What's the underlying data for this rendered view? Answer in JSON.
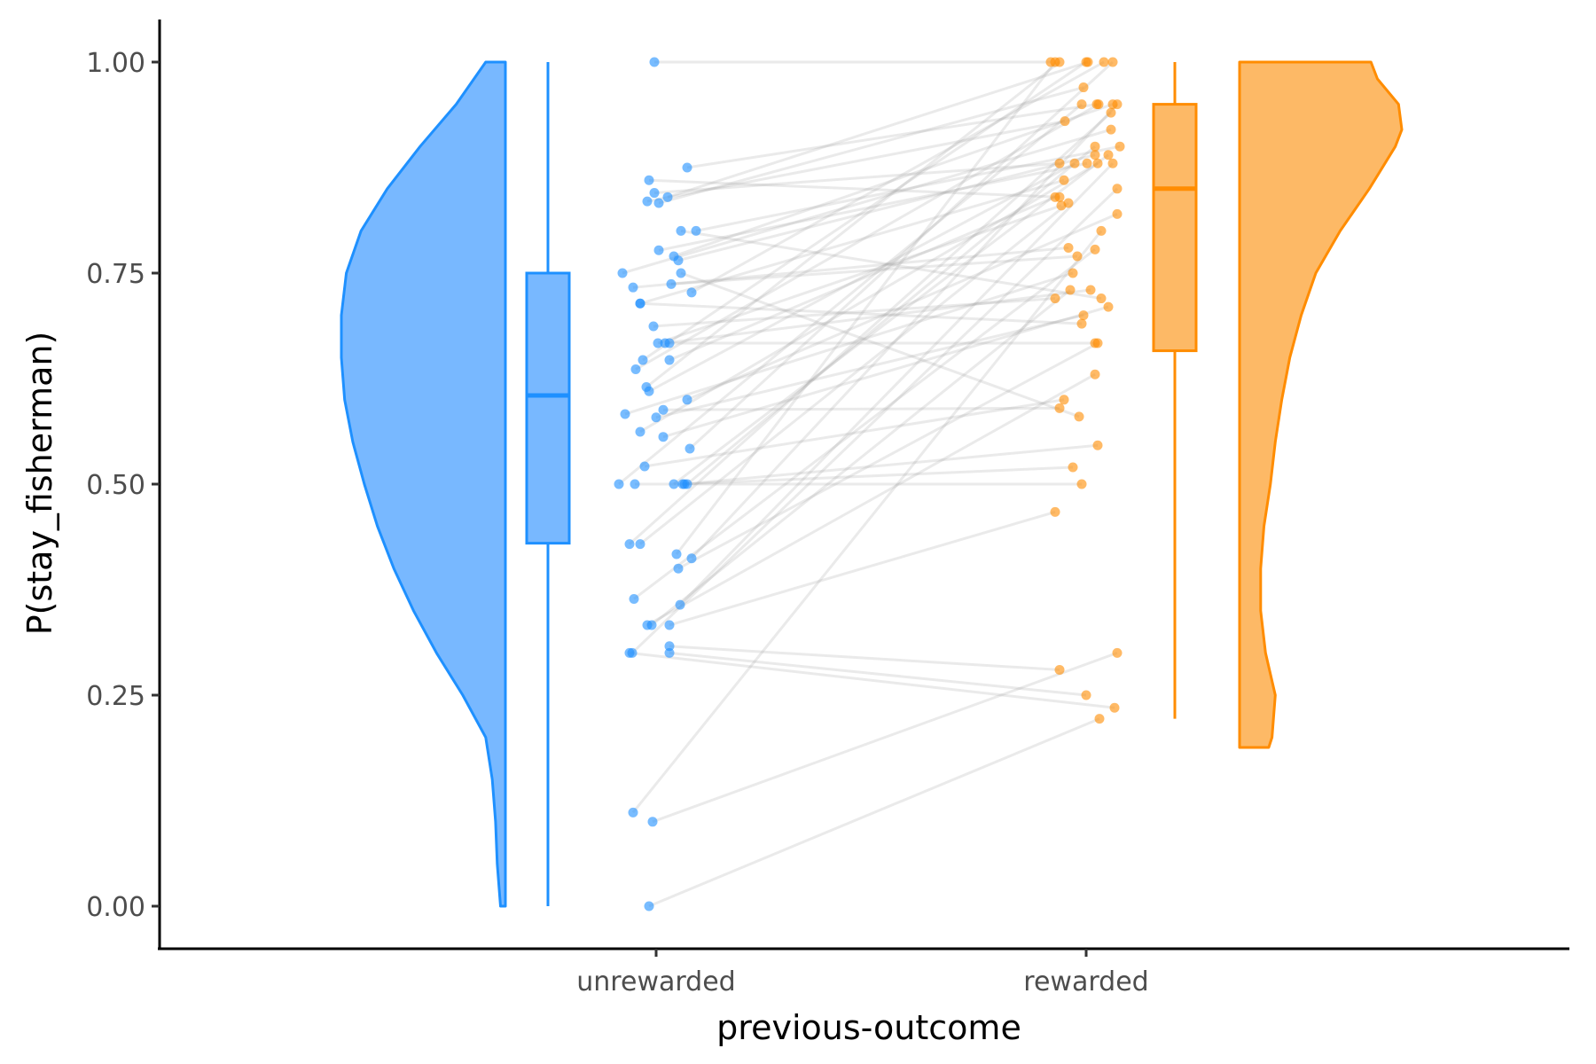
{
  "chart_data": {
    "type": "raincloud",
    "xlabel": "previous-outcome",
    "ylabel": "P(stay_fisherman)",
    "ylim": [
      0,
      1
    ],
    "yticks": [
      "0.00",
      "0.25",
      "0.50",
      "0.75",
      "1.00"
    ],
    "categories": [
      "unrewarded",
      "rewarded"
    ],
    "grid": false,
    "groups": [
      {
        "name": "unrewarded",
        "stroke": "#1e90ff",
        "fill": "#78b8ff",
        "box": {
          "min": 0.0,
          "q1": 0.43,
          "median": 0.605,
          "q3": 0.75,
          "max": 1.0
        },
        "density": [
          [
            0.0,
            0.03
          ],
          [
            0.05,
            0.05
          ],
          [
            0.1,
            0.06
          ],
          [
            0.15,
            0.08
          ],
          [
            0.2,
            0.12
          ],
          [
            0.25,
            0.26
          ],
          [
            0.3,
            0.42
          ],
          [
            0.35,
            0.56
          ],
          [
            0.4,
            0.68
          ],
          [
            0.45,
            0.78
          ],
          [
            0.5,
            0.86
          ],
          [
            0.55,
            0.93
          ],
          [
            0.6,
            0.98
          ],
          [
            0.65,
            1.0
          ],
          [
            0.7,
            1.0
          ],
          [
            0.75,
            0.97
          ],
          [
            0.8,
            0.88
          ],
          [
            0.85,
            0.72
          ],
          [
            0.9,
            0.52
          ],
          [
            0.95,
            0.3
          ],
          [
            1.0,
            0.12
          ]
        ]
      },
      {
        "name": "rewarded",
        "stroke": "#ff8c00",
        "fill": "#fdb966",
        "box": {
          "min": 0.222,
          "q1": 0.658,
          "median": 0.85,
          "q3": 0.95,
          "max": 1.0
        },
        "density": [
          [
            0.188,
            0.18
          ],
          [
            0.2,
            0.2
          ],
          [
            0.25,
            0.22
          ],
          [
            0.3,
            0.16
          ],
          [
            0.35,
            0.13
          ],
          [
            0.4,
            0.13
          ],
          [
            0.45,
            0.15
          ],
          [
            0.5,
            0.19
          ],
          [
            0.55,
            0.22
          ],
          [
            0.6,
            0.26
          ],
          [
            0.65,
            0.31
          ],
          [
            0.7,
            0.38
          ],
          [
            0.75,
            0.47
          ],
          [
            0.8,
            0.62
          ],
          [
            0.85,
            0.8
          ],
          [
            0.9,
            0.96
          ],
          [
            0.92,
            1.0
          ],
          [
            0.95,
            0.98
          ],
          [
            0.98,
            0.85
          ],
          [
            1.0,
            0.81
          ]
        ]
      }
    ],
    "pairs": [
      [
        1.0,
        1.0
      ],
      [
        0.875,
        0.95
      ],
      [
        0.86,
        0.84
      ],
      [
        0.845,
        0.88
      ],
      [
        0.84,
        1.0
      ],
      [
        0.835,
        0.93
      ],
      [
        0.833,
        0.97
      ],
      [
        0.8,
        0.9
      ],
      [
        0.8,
        0.72
      ],
      [
        0.777,
        0.88
      ],
      [
        0.77,
        0.95
      ],
      [
        0.765,
        0.89
      ],
      [
        0.75,
        0.92
      ],
      [
        0.75,
        0.58
      ],
      [
        0.737,
        0.77
      ],
      [
        0.733,
        0.78
      ],
      [
        0.727,
        1.0
      ],
      [
        0.714,
        0.86
      ],
      [
        0.714,
        0.69
      ],
      [
        0.687,
        0.72
      ],
      [
        0.667,
        0.83
      ],
      [
        0.667,
        0.73
      ],
      [
        0.667,
        0.667
      ],
      [
        0.647,
        1.0
      ],
      [
        0.647,
        0.84
      ],
      [
        0.636,
        0.95
      ],
      [
        0.615,
        1.0
      ],
      [
        0.61,
        0.88
      ],
      [
        0.6,
        0.82
      ],
      [
        0.588,
        0.59
      ],
      [
        0.583,
        0.75
      ],
      [
        0.579,
        0.7
      ],
      [
        0.562,
        0.88
      ],
      [
        0.556,
        0.71
      ],
      [
        0.542,
        1.0
      ],
      [
        0.521,
        0.6
      ],
      [
        0.5,
        0.95
      ],
      [
        0.5,
        0.89
      ],
      [
        0.5,
        0.52
      ],
      [
        0.5,
        0.546
      ],
      [
        0.5,
        0.9
      ],
      [
        0.5,
        0.5
      ],
      [
        0.429,
        0.94
      ],
      [
        0.429,
        0.833
      ],
      [
        0.417,
        1.0
      ],
      [
        0.412,
        0.95
      ],
      [
        0.4,
        0.667
      ],
      [
        0.364,
        0.778
      ],
      [
        0.357,
        0.88
      ],
      [
        0.333,
        0.73
      ],
      [
        0.333,
        0.63
      ],
      [
        0.333,
        0.467
      ],
      [
        0.308,
        0.28
      ],
      [
        0.3,
        0.25
      ],
      [
        0.3,
        0.235
      ],
      [
        0.3,
        0.85
      ],
      [
        0.111,
        0.8
      ],
      [
        0.1,
        0.3
      ],
      [
        0.0,
        0.222
      ]
    ],
    "unrewarded_jitter": [
      -2,
      35,
      -8,
      -2,
      13,
      -10,
      3,
      45,
      28,
      3,
      20,
      25,
      -38,
      28,
      17,
      -26,
      40,
      -18,
      -18,
      -3,
      2,
      10,
      15,
      -15,
      15,
      -23,
      -11,
      -8,
      35,
      8,
      -35,
      0,
      -18,
      8,
      38,
      -13,
      -42,
      20,
      30,
      32,
      35,
      -24,
      -30,
      -18,
      23,
      40,
      25,
      -25,
      27,
      -5,
      -10,
      15,
      15,
      15,
      -30,
      -27,
      -26,
      -4,
      -8
    ],
    "rewarded_jitter": [
      -40,
      12,
      -30,
      -30,
      2,
      -24,
      -3,
      38,
      17,
      1,
      30,
      10,
      28,
      -8,
      -10,
      -20,
      20,
      -25,
      -5,
      -35,
      -28,
      5,
      10,
      0,
      -35,
      14,
      -30,
      -13,
      35,
      -30,
      -15,
      -3,
      13,
      25,
      30,
      -25,
      -5,
      25,
      -15,
      13,
      10,
      -5,
      28,
      -20,
      -35,
      35,
      13,
      10,
      30,
      -18,
      10,
      -35,
      -30,
      0,
      32,
      35,
      17,
      35,
      15
    ]
  }
}
